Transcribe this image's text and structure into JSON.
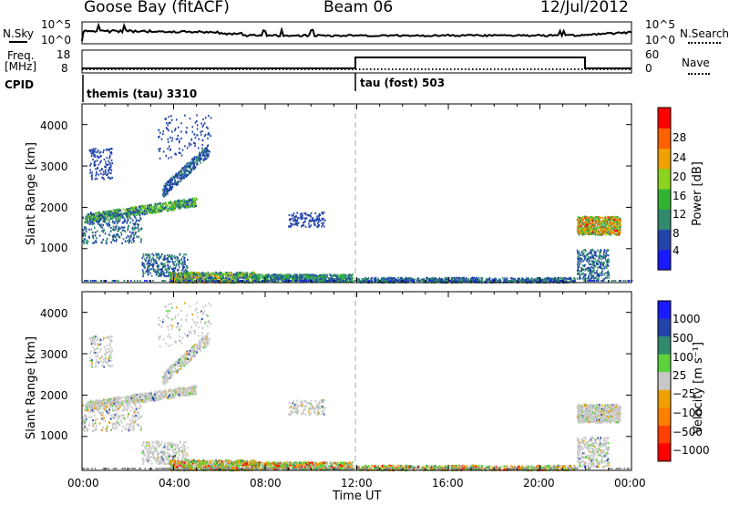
{
  "header": {
    "station": "Goose Bay (fitACF)",
    "beam": "Beam 06",
    "date": "12/Jul/2012"
  },
  "noise_panel": {
    "left_label": "N.Sky",
    "right_label": "N.Search",
    "ticks_left": [
      "10^5",
      "10^0"
    ],
    "ticks_right": [
      "10^5",
      "10^0"
    ]
  },
  "freq_panel": {
    "left_label_1": "Freq.",
    "left_label_2": "[MHz]",
    "ticks_left": [
      "18",
      "8"
    ],
    "right_label": "Nave",
    "ticks_right": [
      "60",
      "0"
    ]
  },
  "cpid_panel": {
    "label": "CPID",
    "programs": [
      {
        "name": "themis (tau) 3310",
        "start_hour": 0
      },
      {
        "name": "tau (fost) 503",
        "start_hour": 12
      }
    ]
  },
  "time_axis": {
    "label": "Time UT",
    "ticks": [
      "00:00",
      "04:00",
      "08:00",
      "12:00",
      "16:00",
      "20:00",
      "00:00"
    ]
  },
  "colors": {
    "ground": "#8c8c8c"
  },
  "power_panel": {
    "ylabel": "Slant Range [km]",
    "yticks": [
      "1000",
      "2000",
      "3000",
      "4000"
    ],
    "colorbar_label": "Power [dB]",
    "colorbar_ticks": [
      "4",
      "8",
      "12",
      "16",
      "20",
      "24",
      "28"
    ],
    "colorbar_colors": [
      "#1a1aff",
      "#2244aa",
      "#2f8a6e",
      "#32b432",
      "#8cd21e",
      "#f0a000",
      "#ff6000",
      "#ff0000"
    ]
  },
  "velocity_panel": {
    "ylabel": "Slant Range [km]",
    "yticks": [
      "1000",
      "2000",
      "3000",
      "4000"
    ],
    "colorbar_label": "Velocity [m s⁻¹]",
    "colorbar_ticks": [
      "1000",
      "500",
      "100",
      "25",
      "−25",
      "−100",
      "−500",
      "−1000"
    ],
    "colorbar_colors": [
      "#1a1aff",
      "#2244aa",
      "#2f8a6e",
      "#5cd23c",
      "#c8c8c8",
      "#f0a000",
      "#ff8000",
      "#ff4000",
      "#ff0000"
    ]
  },
  "chart_data": {
    "type": "heatmap",
    "x_range_hours": [
      0,
      24
    ],
    "y_range_km": [
      180,
      4500
    ],
    "scatter_regions": [
      {
        "t0": 0.1,
        "t1": 5.0,
        "r0": 1750,
        "r1": 2150,
        "sub": "arc",
        "power": [
          4,
          20
        ],
        "vel": "gray"
      },
      {
        "t0": 3.5,
        "t1": 5.5,
        "r0": 2400,
        "r1": 3400,
        "sub": "arc2",
        "power": [
          4,
          10
        ],
        "vel": "gray"
      },
      {
        "t0": 3.3,
        "t1": 5.6,
        "r0": 3200,
        "r1": 4250,
        "sub": "sparse",
        "power": [
          4,
          8
        ],
        "vel": "gray"
      },
      {
        "t0": 0.0,
        "t1": 2.6,
        "r0": 1150,
        "r1": 1900,
        "sub": "blob",
        "power": [
          4,
          12
        ],
        "vel": "gray"
      },
      {
        "t0": 0.3,
        "t1": 1.3,
        "r0": 2700,
        "r1": 3450,
        "sub": "sparse",
        "power": [
          4,
          8
        ],
        "vel": "gray"
      },
      {
        "t0": 2.6,
        "t1": 4.6,
        "r0": 350,
        "r1": 900,
        "sub": "blob",
        "power": [
          4,
          12
        ],
        "vel": "gray"
      },
      {
        "t0": 3.8,
        "t1": 7.5,
        "r0": 200,
        "r1": 450,
        "sub": "band",
        "power": [
          4,
          24
        ],
        "vel": "mix"
      },
      {
        "t0": 7.5,
        "t1": 11.8,
        "r0": 220,
        "r1": 400,
        "sub": "band",
        "power": [
          4,
          16
        ],
        "vel": "mix"
      },
      {
        "t0": 9.0,
        "t1": 10.6,
        "r0": 1550,
        "r1": 1900,
        "sub": "sparse",
        "power": [
          4,
          8
        ],
        "vel": "gray"
      },
      {
        "t0": 12.0,
        "t1": 21.5,
        "r0": 200,
        "r1": 320,
        "sub": "band",
        "power": [
          4,
          12
        ],
        "vel": "mix"
      },
      {
        "t0": 21.6,
        "t1": 23.5,
        "r0": 1350,
        "r1": 1800,
        "sub": "block",
        "power": [
          8,
          30
        ],
        "vel": "gray"
      },
      {
        "t0": 21.6,
        "t1": 23.0,
        "r0": 280,
        "r1": 1000,
        "sub": "blob",
        "power": [
          4,
          12
        ],
        "vel": "gray"
      }
    ]
  }
}
